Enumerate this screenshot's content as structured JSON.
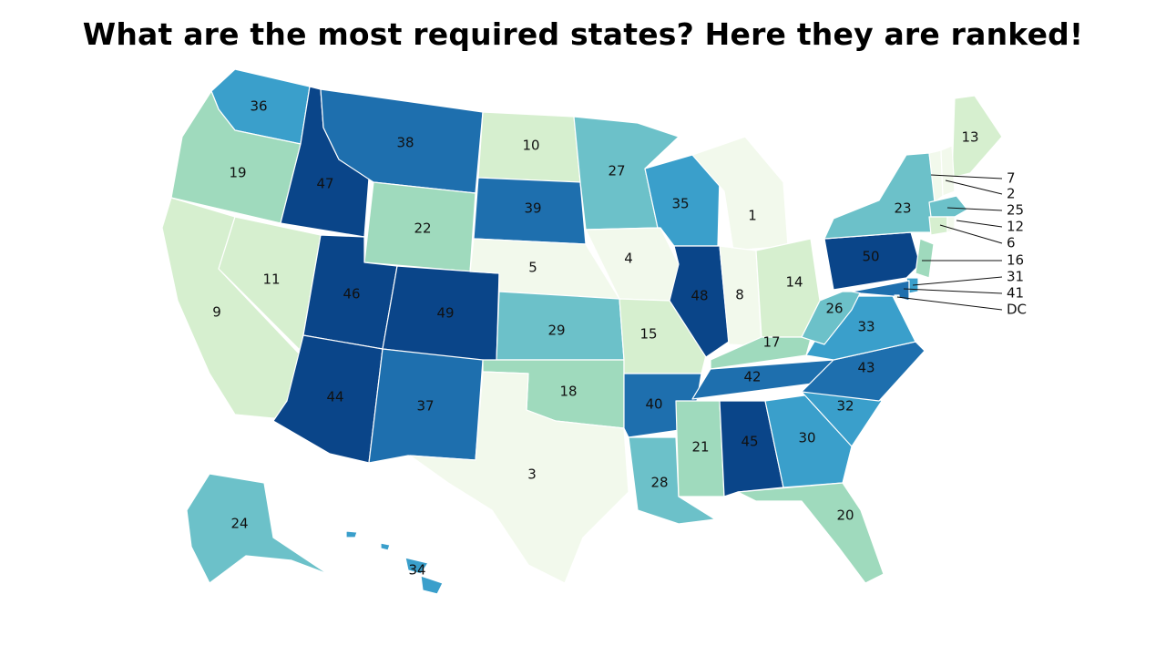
{
  "title": "What are the most required states? Here they are ranked!",
  "palette": {
    "scale": [
      "#f2f9ec",
      "#d6efcf",
      "#9fdabd",
      "#6cc1c9",
      "#3a9fcb",
      "#1e6fae",
      "#0a4589"
    ]
  },
  "states": [
    {
      "id": "WA",
      "rank": "36"
    },
    {
      "id": "OR",
      "rank": "19"
    },
    {
      "id": "CA",
      "rank": "9"
    },
    {
      "id": "NV",
      "rank": "11"
    },
    {
      "id": "ID",
      "rank": "47"
    },
    {
      "id": "MT",
      "rank": "38"
    },
    {
      "id": "WY",
      "rank": "22"
    },
    {
      "id": "UT",
      "rank": "46"
    },
    {
      "id": "AZ",
      "rank": "44"
    },
    {
      "id": "CO",
      "rank": "49"
    },
    {
      "id": "NM",
      "rank": "37"
    },
    {
      "id": "ND",
      "rank": "10"
    },
    {
      "id": "SD",
      "rank": "39"
    },
    {
      "id": "NE",
      "rank": "5"
    },
    {
      "id": "KS",
      "rank": "29"
    },
    {
      "id": "OK",
      "rank": "18"
    },
    {
      "id": "TX",
      "rank": "3"
    },
    {
      "id": "MN",
      "rank": "27"
    },
    {
      "id": "IA",
      "rank": "4"
    },
    {
      "id": "MO",
      "rank": "15"
    },
    {
      "id": "AR",
      "rank": "40"
    },
    {
      "id": "LA",
      "rank": "28"
    },
    {
      "id": "WI",
      "rank": "35"
    },
    {
      "id": "IL",
      "rank": "48"
    },
    {
      "id": "MI",
      "rank": "1"
    },
    {
      "id": "IN",
      "rank": "8"
    },
    {
      "id": "OH",
      "rank": "14"
    },
    {
      "id": "KY",
      "rank": "17"
    },
    {
      "id": "TN",
      "rank": "42"
    },
    {
      "id": "MS",
      "rank": "21"
    },
    {
      "id": "AL",
      "rank": "45"
    },
    {
      "id": "GA",
      "rank": "30"
    },
    {
      "id": "FL",
      "rank": "20"
    },
    {
      "id": "SC",
      "rank": "32"
    },
    {
      "id": "NC",
      "rank": "43"
    },
    {
      "id": "VA",
      "rank": "33"
    },
    {
      "id": "WV",
      "rank": "26"
    },
    {
      "id": "PA",
      "rank": "50"
    },
    {
      "id": "NY",
      "rank": "23"
    },
    {
      "id": "ME",
      "rank": "13"
    },
    {
      "id": "AK",
      "rank": "24"
    },
    {
      "id": "HI",
      "rank": "34"
    },
    {
      "id": "NJ",
      "rank": "16"
    },
    {
      "id": "DE",
      "rank": "31"
    },
    {
      "id": "MD",
      "rank": "41"
    },
    {
      "id": "DC",
      "rank": "DC"
    },
    {
      "id": "VT",
      "rank": "7"
    },
    {
      "id": "NH",
      "rank": "2"
    },
    {
      "id": "MA",
      "rank": "25"
    },
    {
      "id": "CT",
      "rank": "12"
    },
    {
      "id": "RI",
      "rank": "6"
    }
  ]
}
